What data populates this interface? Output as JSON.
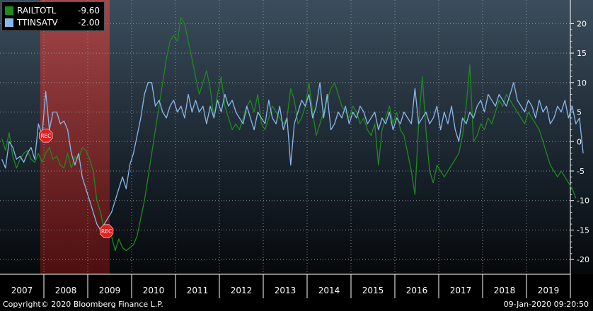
{
  "chart_data": {
    "type": "line",
    "ylim": [
      -22.5,
      24
    ],
    "yticks": [
      -20,
      -15,
      -10,
      -5,
      0,
      5,
      10,
      15,
      20
    ],
    "x_range": [
      "2007-01",
      "2019-12"
    ],
    "x_labels": [
      "2007",
      "2008",
      "2009",
      "2010",
      "2011",
      "2012",
      "2013",
      "2014",
      "2015",
      "2016",
      "2017",
      "2018",
      "2019"
    ],
    "grid": true,
    "legend_position": "top-left",
    "series": [
      {
        "name": "RAILTOTL",
        "last_value": "-9.60",
        "color": "#1e8a1e",
        "start": "2007-01",
        "values": [
          0.5,
          -1.5,
          1.5,
          -2.5,
          -4.5,
          -3,
          -2,
          -1.5,
          -3,
          -3.5,
          -2,
          -3.5,
          -2,
          -1,
          -3,
          -2.5,
          -4,
          -4.5,
          -2,
          -4.5,
          -2.5,
          -3,
          -1,
          -1.5,
          -3,
          -5,
          -10,
          -12,
          -15,
          -14,
          -16,
          -18.5,
          -16.5,
          -18,
          -18.5,
          -18,
          -17.5,
          -16,
          -13,
          -10,
          -6,
          -2,
          2,
          6,
          10,
          14,
          17,
          18,
          17,
          21,
          20,
          17,
          14,
          11,
          8,
          10,
          12,
          9,
          4,
          8,
          11,
          6,
          4,
          2,
          3,
          2,
          4,
          6,
          7,
          5,
          8,
          3,
          2,
          4,
          6,
          5,
          4,
          3,
          4,
          9,
          7,
          3,
          4,
          6,
          10,
          5,
          1,
          3,
          5,
          7,
          9,
          10,
          8,
          6,
          5,
          4,
          6,
          5,
          3,
          4,
          2,
          1,
          3,
          -4,
          2,
          4,
          6,
          3,
          5,
          2,
          1,
          -2,
          -5,
          -9,
          3,
          11,
          2,
          -5,
          -7,
          -4,
          -5,
          -6,
          -5,
          -4,
          -3,
          -2,
          1,
          6,
          13,
          0,
          1,
          3,
          2,
          4,
          3,
          5,
          7,
          6,
          8,
          7,
          6,
          5,
          4,
          3,
          5,
          4,
          3,
          2,
          0,
          -2,
          -4,
          -5,
          -6,
          -5,
          -6,
          -7,
          -8,
          -9.6
        ]
      },
      {
        "name": "TTINSATV",
        "last_value": "-2.00",
        "color": "#8ab8ec",
        "start": "2007-01",
        "values": [
          -3,
          -4.5,
          0,
          -1,
          -3,
          -2.5,
          -3.5,
          -2,
          -1,
          -3,
          3,
          1,
          8.5,
          2,
          5,
          5,
          3,
          3.5,
          2,
          -2,
          -4,
          -2,
          -6,
          -8,
          -10,
          -12,
          -14,
          -15,
          -14,
          -13,
          -12,
          -10,
          -8,
          -6,
          -8,
          -4,
          -2,
          1,
          4,
          8,
          10,
          10,
          6,
          7,
          5,
          4,
          6,
          7,
          5,
          6,
          4,
          8,
          5,
          7,
          5,
          6,
          3,
          6,
          4,
          7,
          5,
          8,
          6,
          7,
          5,
          4,
          3,
          6,
          4,
          2,
          5,
          4,
          3,
          7,
          4,
          3,
          6,
          2,
          4,
          -4,
          3,
          5,
          7,
          6,
          8,
          4,
          6,
          10,
          4,
          8,
          2,
          3,
          5,
          4,
          6,
          3,
          5,
          4,
          6,
          5,
          3,
          4,
          5,
          2,
          4,
          3,
          5,
          2,
          4,
          3,
          5,
          4,
          3,
          9,
          3,
          4,
          5,
          3,
          4,
          6,
          2,
          5,
          3,
          6,
          2,
          0,
          4,
          3,
          5,
          4,
          6,
          7,
          5,
          8,
          7,
          6,
          8,
          7,
          6,
          8,
          10,
          7,
          6,
          5,
          7,
          6,
          4,
          7,
          5,
          6,
          3,
          4,
          6,
          5,
          7,
          4,
          6,
          3,
          4,
          -2
        ]
      }
    ]
  },
  "recession_markers": [
    "REC",
    "REC"
  ],
  "footer": {
    "copyright": "Copyright© 2020 Bloomberg Finance L.P.",
    "timestamp": "09-Jan-2020 09:20:50"
  }
}
